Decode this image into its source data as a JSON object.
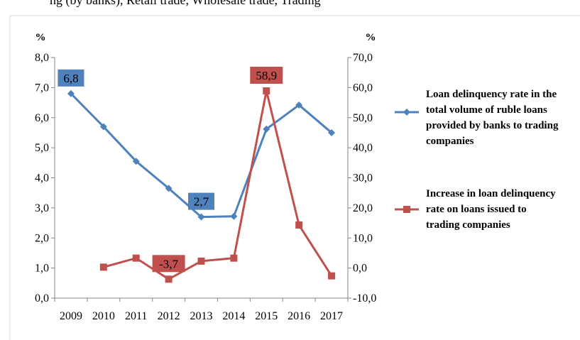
{
  "page_fragment": {
    "top_text": "ng (by banks), Retail trade, Wholesale trade, Trading"
  },
  "chart_data": {
    "type": "line",
    "x": [
      "2009",
      "2010",
      "2011",
      "2012",
      "2013",
      "2014",
      "2015",
      "2016",
      "2017"
    ],
    "left_axis": {
      "unit": "%",
      "ylim": [
        0,
        8
      ],
      "ticks": [
        "0,0",
        "1,0",
        "2,0",
        "3,0",
        "4,0",
        "5,0",
        "6,0",
        "7,0",
        "8,0"
      ]
    },
    "right_axis": {
      "unit": "%",
      "ylim": [
        -10,
        70
      ],
      "ticks": [
        "-10,0",
        "0,0",
        "10,0",
        "20,0",
        "30,0",
        "40,0",
        "50,0",
        "60,0",
        "70,0"
      ]
    },
    "series": [
      {
        "name": "Loan delinquency rate in the total volume of ruble loans provided by banks to trading companies",
        "legend_lines": [
          "Loan delinquency rate in the",
          "total volume of ruble loans",
          "provided by banks to trading",
          "companies"
        ],
        "axis": "left",
        "color": "#4F81BD",
        "marker": "diamond",
        "values": [
          6.8,
          5.7,
          4.55,
          3.65,
          2.7,
          2.72,
          5.62,
          6.42,
          5.5
        ],
        "data_labels": [
          {
            "index": 0,
            "text": "6,8"
          },
          {
            "index": 4,
            "text": "2,7"
          }
        ]
      },
      {
        "name": "Increase in loan delinquency rate on loans issued to trading companies",
        "legend_lines": [
          "Increase in loan delinquency",
          "rate on loans issued to",
          "trading companies"
        ],
        "axis": "right",
        "color": "#C0504D",
        "marker": "square",
        "values": [
          null,
          0.3,
          3.3,
          -3.7,
          2.3,
          3.3,
          58.9,
          14.3,
          -2.6
        ],
        "data_labels": [
          {
            "index": 3,
            "text": "-3,7"
          },
          {
            "index": 6,
            "text": "58,9"
          }
        ]
      }
    ],
    "grid": false,
    "legend_position": "right"
  }
}
